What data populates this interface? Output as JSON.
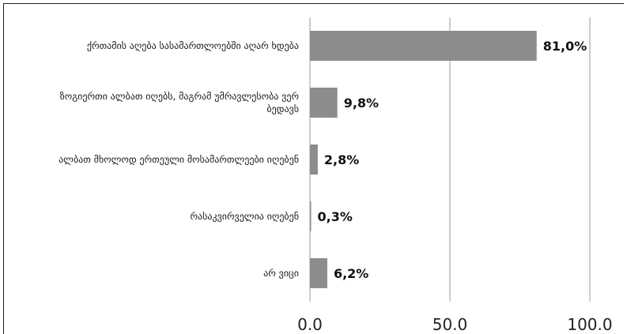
{
  "chart_data": {
    "type": "bar",
    "orientation": "horizontal",
    "title": "",
    "xlabel": "",
    "ylabel": "",
    "xlim": [
      0,
      100
    ],
    "xticks": [
      "0.0",
      "50.0",
      "100.0"
    ],
    "grid": true,
    "legend": "none",
    "bar_color": "#8c8c8c",
    "categories": [
      [
        "ქრთამის აღება სასამართლოებში აღარ ხდება"
      ],
      [
        "ზოგიერთი ალბათ იღებს, მაგრამ უმრავლესობა ვერ",
        "ბედავს"
      ],
      [
        "ალბათ მხოლოდ ერთეული მოსამართლეები იღებენ"
      ],
      [
        "რასაკვირველია იღებენ"
      ],
      [
        "არ ვიცი"
      ]
    ],
    "values": [
      81.0,
      9.8,
      2.8,
      0.3,
      6.2
    ],
    "value_labels": [
      "81,0%",
      "9,8%",
      "2,8%",
      "0,3%",
      "6,2%"
    ]
  }
}
